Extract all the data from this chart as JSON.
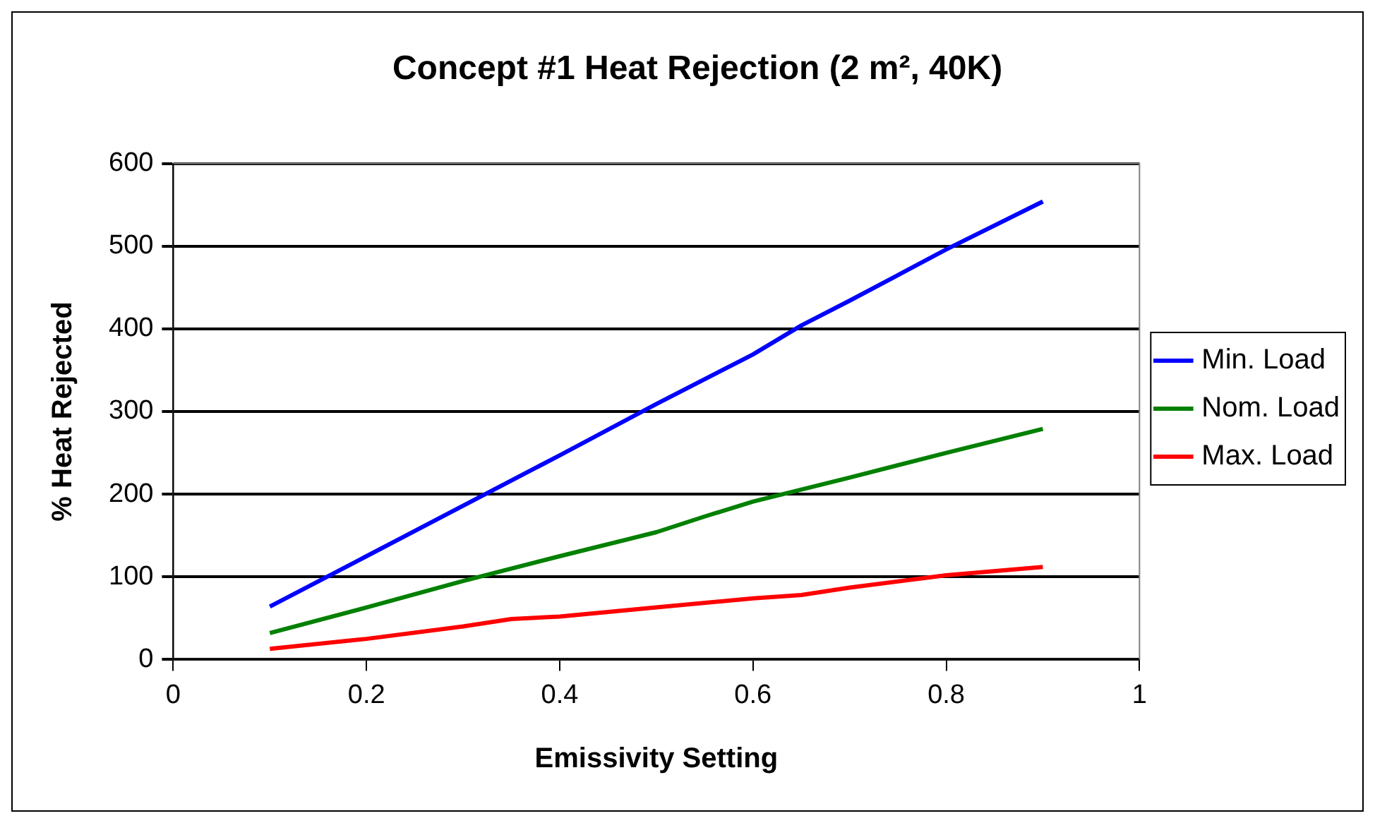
{
  "chart_data": {
    "type": "line",
    "title": "Concept #1 Heat Rejection (2 m², 40K)",
    "xlabel": "Emissivity Setting",
    "ylabel": "% Heat Rejected",
    "xlim": [
      0,
      1
    ],
    "xticks": [
      0,
      0.2,
      0.4,
      0.6,
      0.8,
      1
    ],
    "ylim": [
      0,
      600
    ],
    "yticks": [
      0,
      100,
      200,
      300,
      400,
      500,
      600
    ],
    "grid": "y",
    "legend": "right",
    "marker": "none",
    "line_style": "solid",
    "series": [
      {
        "name": "Min. Load",
        "color": "#0000ff",
        "x": [
          0.1,
          0.2,
          0.4,
          0.5,
          0.6,
          0.65,
          0.7,
          0.8,
          0.9
        ],
        "values": [
          64,
          125,
          247,
          309,
          369,
          404,
          434,
          496,
          554
        ]
      },
      {
        "name": "Nom. Load",
        "color": "#008000",
        "x": [
          0.1,
          0.2,
          0.3,
          0.4,
          0.5,
          0.55,
          0.6,
          0.7,
          0.8,
          0.9
        ],
        "values": [
          32,
          63,
          95,
          125,
          154,
          173,
          191,
          220,
          250,
          279
        ]
      },
      {
        "name": "Max. Load",
        "color": "#ff0000",
        "x": [
          0.1,
          0.2,
          0.3,
          0.35,
          0.4,
          0.5,
          0.6,
          0.65,
          0.7,
          0.8,
          0.9
        ],
        "values": [
          13,
          25,
          40,
          49,
          52,
          63,
          74,
          78,
          87,
          102,
          112
        ]
      }
    ]
  }
}
